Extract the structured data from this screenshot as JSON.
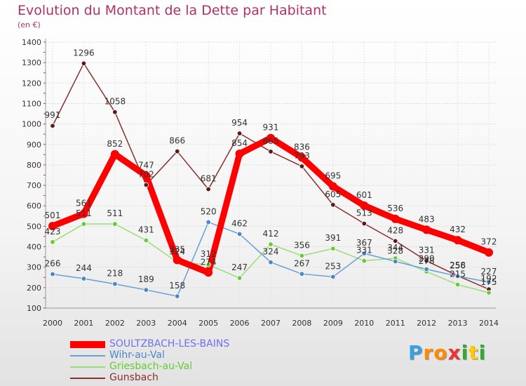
{
  "chart_data": {
    "type": "line",
    "title": "Evolution du Montant de la Dette par Habitant",
    "unit": "(en €)",
    "x": [
      "2000",
      "2001",
      "2002",
      "2003",
      "2004",
      "2005",
      "2006",
      "2007",
      "2008",
      "2009",
      "2010",
      "2011",
      "2012",
      "2013",
      "2014"
    ],
    "ylim": [
      100,
      1400
    ],
    "yticks": [
      "100",
      "200",
      "300",
      "400",
      "500",
      "600",
      "700",
      "800",
      "900",
      "1000",
      "1100",
      "1200",
      "1300",
      "1400"
    ],
    "grid": true,
    "legend_position": "bottom-left",
    "series": [
      {
        "name": "SOULTZBACH-LES-BAINS",
        "color": "#ff0000",
        "marker": "#ff0000",
        "legend_color": "#6f6ff0",
        "values": [
          501,
          561,
          852,
          747,
          335,
          274,
          854,
          931,
          836,
          695,
          601,
          536,
          483,
          432,
          372
        ],
        "labels": [
          "501",
          "561",
          "852",
          "747",
          "335",
          "274",
          "854",
          "931",
          "836",
          "695",
          "601",
          "536",
          "483",
          "432",
          "372"
        ]
      },
      {
        "name": "Wihr-au-Val",
        "color": "#6a9fd4",
        "marker": "#4a86c8",
        "legend_color": "#4a86c8",
        "values": [
          266,
          244,
          218,
          189,
          158,
          520,
          462,
          324,
          267,
          253,
          367,
          328,
          290,
          256,
          227
        ],
        "labels": [
          "266",
          "244",
          "218",
          "189",
          "158",
          "520",
          "462",
          "324",
          "267",
          "253",
          "367",
          "328",
          "290",
          "256",
          "227"
        ]
      },
      {
        "name": "Griesbach-au-Val",
        "color": "#9cdc78",
        "marker": "#66cc33",
        "legend_color": "#66cc33",
        "values": [
          423,
          511,
          511,
          431,
          324,
          312,
          247,
          412,
          356,
          391,
          331,
          344,
          278,
          215,
          175
        ],
        "labels": [
          "423",
          "511",
          "511",
          "431",
          "324",
          "312",
          "247",
          "412",
          "356",
          "391",
          "331",
          "344",
          "278",
          "215",
          "175"
        ]
      },
      {
        "name": "Gunsbach",
        "color": "#8a2e2e",
        "marker": "#5a1a1a",
        "legend_color": "#8a2e2e",
        "values": [
          991,
          1296,
          1058,
          702,
          866,
          681,
          954,
          865,
          793,
          605,
          513,
          428,
          331,
          258,
          192
        ],
        "labels": [
          "991",
          "1296",
          "1058",
          "702",
          "866",
          "681",
          "954",
          "865",
          "793",
          "605",
          "513",
          "428",
          "331",
          "258",
          "192"
        ]
      }
    ]
  },
  "brand": {
    "letters": [
      "P",
      "r",
      "o",
      "x",
      "i",
      "t",
      "i"
    ],
    "colors": [
      "#3aa0e0",
      "#ff8a00",
      "#ff8a00",
      "#e33",
      "#33aa33",
      "#ffcc00",
      "#33aa33"
    ]
  }
}
